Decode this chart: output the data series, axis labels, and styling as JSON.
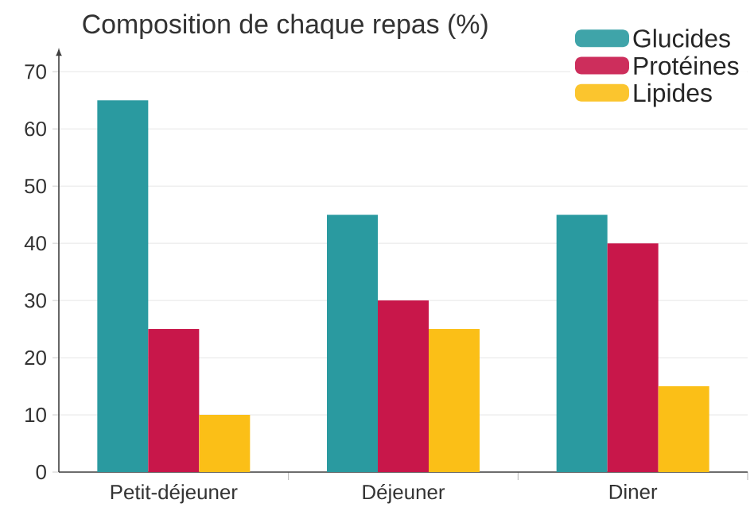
{
  "chart_data": {
    "type": "bar",
    "title": "Composition de chaque repas (%)",
    "categories": [
      "Petit-déjeuner",
      "Déjeuner",
      "Diner"
    ],
    "series": [
      {
        "name": "Glucides",
        "color": "#2a9aa0",
        "values": [
          65,
          45,
          45
        ]
      },
      {
        "name": "Protéines",
        "color": "#c8174a",
        "values": [
          25,
          30,
          40
        ]
      },
      {
        "name": "Lipides",
        "color": "#fbbf17",
        "values": [
          10,
          25,
          15
        ]
      }
    ],
    "ylim": [
      0,
      70
    ],
    "yticks": [
      0,
      10,
      20,
      30,
      40,
      50,
      60,
      70
    ],
    "grid": "y",
    "legend": "top right"
  }
}
